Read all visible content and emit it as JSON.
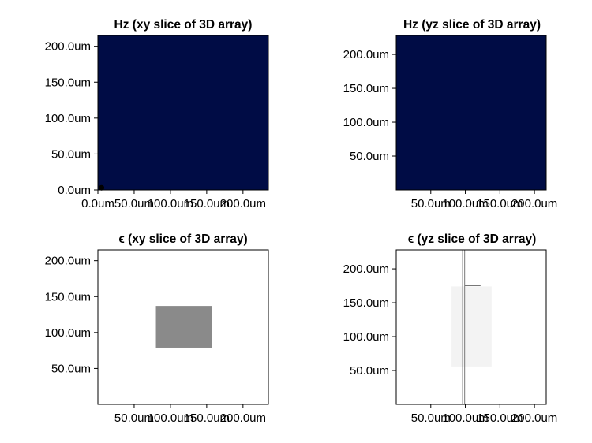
{
  "chart_data": [
    {
      "type": "heatmap",
      "title": "Hz (xy slice of 3D array)",
      "fill_color": "#000c45",
      "xlim": [
        0,
        235
      ],
      "ylim": [
        0,
        215
      ],
      "xticks": [
        {
          "value": 0,
          "label": "0.0um"
        },
        {
          "value": 50,
          "label": "50.0um"
        },
        {
          "value": 100,
          "label": "100.0um"
        },
        {
          "value": 150,
          "label": "150.0um"
        },
        {
          "value": 200,
          "label": "200.0um"
        }
      ],
      "yticks": [
        {
          "value": 0,
          "label": "0.0um"
        },
        {
          "value": 50,
          "label": "50.0um"
        },
        {
          "value": 100,
          "label": "100.0um"
        },
        {
          "value": 150,
          "label": "150.0um"
        },
        {
          "value": 200,
          "label": "200.0um"
        }
      ],
      "markers": [
        {
          "x": 5,
          "y": 3,
          "color": "#000000"
        }
      ]
    },
    {
      "type": "heatmap",
      "title": "Hz (yz slice of 3D array)",
      "fill_color": "#000c45",
      "xlim": [
        0,
        217
      ],
      "ylim": [
        0,
        228
      ],
      "xticks": [
        {
          "value": 50,
          "label": "50.0um"
        },
        {
          "value": 100,
          "label": "100.0um"
        },
        {
          "value": 150,
          "label": "150.0um"
        },
        {
          "value": 200,
          "label": "200.0um"
        }
      ],
      "yticks": [
        {
          "value": 50,
          "label": "50.0um"
        },
        {
          "value": 100,
          "label": "100.0um"
        },
        {
          "value": 150,
          "label": "150.0um"
        },
        {
          "value": 200,
          "label": "200.0um"
        }
      ],
      "markers": []
    },
    {
      "type": "heatmap",
      "title": "ϵ (xy slice of 3D array)",
      "fill_color": "#ffffff",
      "xlim": [
        0,
        235
      ],
      "ylim": [
        0,
        215
      ],
      "xticks": [
        {
          "value": 50,
          "label": "50.0um"
        },
        {
          "value": 100,
          "label": "100.0um"
        },
        {
          "value": 150,
          "label": "150.0um"
        },
        {
          "value": 200,
          "label": "200.0um"
        }
      ],
      "yticks": [
        {
          "value": 50,
          "label": "50.0um"
        },
        {
          "value": 100,
          "label": "100.0um"
        },
        {
          "value": 150,
          "label": "150.0um"
        },
        {
          "value": 200,
          "label": "200.0um"
        }
      ],
      "regions": [
        {
          "x0": 80,
          "x1": 157,
          "y0": 79,
          "y1": 137,
          "color": "#8a8a8a"
        }
      ],
      "lines": []
    },
    {
      "type": "heatmap",
      "title": "ϵ (yz slice of 3D array)",
      "fill_color": "#ffffff",
      "xlim": [
        0,
        217
      ],
      "ylim": [
        0,
        228
      ],
      "xticks": [
        {
          "value": 50,
          "label": "50.0um"
        },
        {
          "value": 100,
          "label": "100.0um"
        },
        {
          "value": 150,
          "label": "150.0um"
        },
        {
          "value": 200,
          "label": "200.0um"
        }
      ],
      "yticks": [
        {
          "value": 50,
          "label": "50.0um"
        },
        {
          "value": 100,
          "label": "100.0um"
        },
        {
          "value": 150,
          "label": "150.0um"
        },
        {
          "value": 200,
          "label": "200.0um"
        }
      ],
      "regions": [
        {
          "x0": 80,
          "x1": 138,
          "y0": 56,
          "y1": 174,
          "color": "#f3f3f3"
        }
      ],
      "lines": [
        {
          "x0": 96,
          "y0": 0,
          "x1": 96,
          "y1": 228,
          "color": "#777777"
        },
        {
          "x0": 99,
          "y0": 0,
          "x1": 99,
          "y1": 228,
          "color": "#777777"
        },
        {
          "x0": 99,
          "y0": 175,
          "x1": 122,
          "y1": 175,
          "color": "#777777"
        }
      ]
    }
  ]
}
